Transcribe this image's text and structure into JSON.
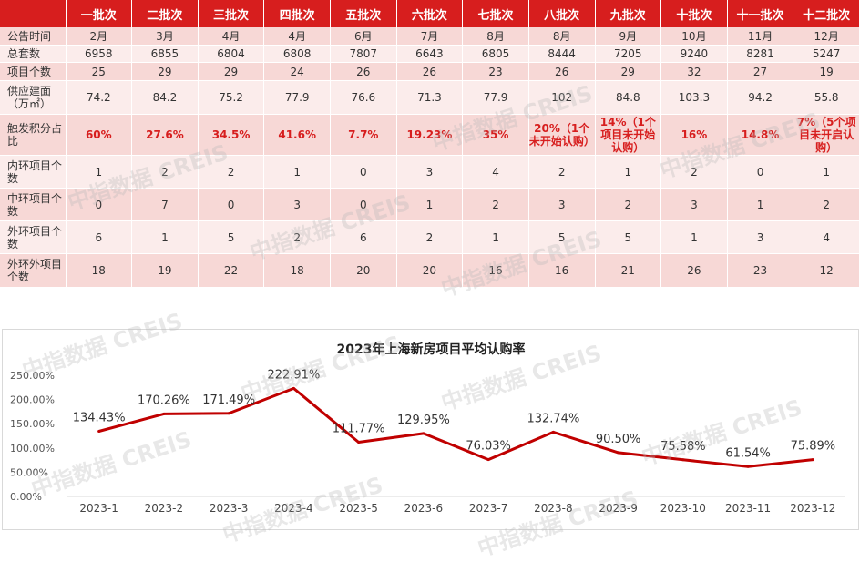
{
  "table": {
    "corner": "",
    "headers": [
      "一批次",
      "二批次",
      "三批次",
      "四批次",
      "五批次",
      "六批次",
      "七批次",
      "八批次",
      "九批次",
      "十批次",
      "十一批次",
      "十二批次"
    ],
    "rows": [
      {
        "label": "公告时间",
        "values": [
          "2月",
          "3月",
          "4月",
          "4月",
          "6月",
          "7月",
          "8月",
          "8月",
          "9月",
          "10月",
          "11月",
          "12月"
        ]
      },
      {
        "label": "总套数",
        "values": [
          "6958",
          "6855",
          "6804",
          "6808",
          "7807",
          "6643",
          "6805",
          "8444",
          "7205",
          "9240",
          "8281",
          "5247"
        ]
      },
      {
        "label": "项目个数",
        "values": [
          "25",
          "29",
          "29",
          "24",
          "26",
          "26",
          "23",
          "26",
          "29",
          "32",
          "27",
          "19"
        ]
      },
      {
        "label": "供应建面（万㎡）",
        "values": [
          "74.2",
          "84.2",
          "75.2",
          "77.9",
          "76.6",
          "71.3",
          "77.9",
          "102",
          "84.8",
          "103.3",
          "94.2",
          "55.8"
        ]
      },
      {
        "label": "触发积分占比",
        "values": [
          "60%",
          "27.6%",
          "34.5%",
          "41.6%",
          "7.7%",
          "19.23%",
          "35%",
          "20%（1个未开始认购）",
          "14%（1个项目未开始认购）",
          "16%",
          "14.8%",
          "7%（5个项目未开启认购）"
        ]
      },
      {
        "label": "内环项目个数",
        "values": [
          "1",
          "2",
          "2",
          "1",
          "0",
          "3",
          "4",
          "2",
          "1",
          "2",
          "0",
          "1"
        ]
      },
      {
        "label": "中环项目个数",
        "values": [
          "0",
          "7",
          "0",
          "3",
          "0",
          "1",
          "2",
          "3",
          "2",
          "3",
          "1",
          "2"
        ]
      },
      {
        "label": "外环项目个数",
        "values": [
          "6",
          "1",
          "5",
          "2",
          "6",
          "2",
          "1",
          "5",
          "5",
          "1",
          "3",
          "4"
        ]
      },
      {
        "label": "外环外项目个数",
        "values": [
          "18",
          "19",
          "22",
          "18",
          "20",
          "20",
          "16",
          "16",
          "21",
          "26",
          "23",
          "12"
        ]
      }
    ]
  },
  "watermark": "中指数据 CREIS",
  "chart_data": {
    "type": "line",
    "title": "2023年上海新房项目平均认购率",
    "categories": [
      "2023-1",
      "2023-2",
      "2023-3",
      "2023-4",
      "2023-5",
      "2023-6",
      "2023-7",
      "2023-8",
      "2023-9",
      "2023-10",
      "2023-11",
      "2023-12"
    ],
    "values": [
      134.43,
      170.26,
      171.49,
      222.91,
      111.77,
      129.95,
      76.03,
      132.74,
      90.5,
      75.58,
      61.54,
      75.89
    ],
    "value_labels": [
      "134.43%",
      "170.26%",
      "171.49%",
      "222.91%",
      "111.77%",
      "129.95%",
      "76.03%",
      "132.74%",
      "90.50%",
      "75.58%",
      "61.54%",
      "75.89%"
    ],
    "yticks": [
      "0.00%",
      "50.00%",
      "100.00%",
      "150.00%",
      "200.00%",
      "250.00%"
    ],
    "ylim": [
      0,
      250
    ],
    "line_color": "#c00000",
    "grid": false,
    "legend": "none"
  }
}
